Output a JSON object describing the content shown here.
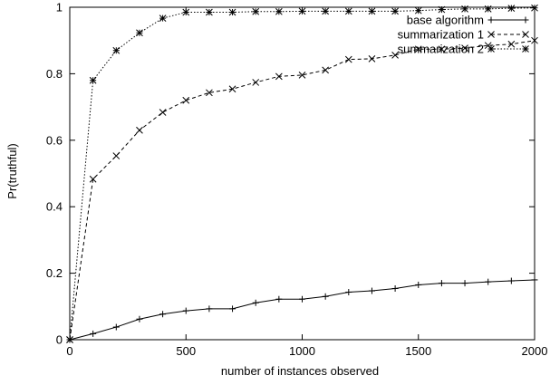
{
  "chart_data": {
    "type": "line",
    "title": "",
    "xlabel": "number of instances observed",
    "ylabel": "Pr(truthful)",
    "xlim": [
      0,
      2000
    ],
    "ylim": [
      0,
      1
    ],
    "x_ticks": [
      0,
      500,
      1000,
      1500,
      2000
    ],
    "x_tick_labels": [
      "0",
      "500",
      "1000",
      "1500",
      "2000"
    ],
    "y_ticks": [
      0,
      0.2,
      0.4,
      0.6,
      0.8,
      1
    ],
    "y_tick_labels": [
      "0",
      "0.2",
      "0.4",
      "0.6",
      "0.8",
      "1"
    ],
    "grid": false,
    "legend_position": "top-right",
    "x": [
      0,
      100,
      200,
      300,
      400,
      500,
      600,
      700,
      800,
      900,
      1000,
      1100,
      1200,
      1300,
      1400,
      1500,
      1600,
      1700,
      1800,
      1900,
      2000
    ],
    "series": [
      {
        "name": "base algorithm",
        "line_style": "solid",
        "marker": "plus",
        "values": [
          0,
          0.018,
          0.038,
          0.062,
          0.077,
          0.087,
          0.093,
          0.093,
          0.111,
          0.122,
          0.122,
          0.13,
          0.143,
          0.147,
          0.154,
          0.165,
          0.17,
          0.17,
          0.174,
          0.177,
          0.18
        ]
      },
      {
        "name": "summarization 1",
        "line_style": "dashed",
        "marker": "x",
        "values": [
          0,
          0.483,
          0.553,
          0.63,
          0.684,
          0.72,
          0.743,
          0.754,
          0.774,
          0.792,
          0.796,
          0.811,
          0.843,
          0.845,
          0.856,
          0.874,
          0.874,
          0.877,
          0.885,
          0.889,
          0.9
        ]
      },
      {
        "name": "summarization 2",
        "line_style": "dotted",
        "marker": "star",
        "values": [
          0,
          0.78,
          0.87,
          0.923,
          0.967,
          0.985,
          0.985,
          0.985,
          0.987,
          0.987,
          0.988,
          0.988,
          0.988,
          0.988,
          0.988,
          0.99,
          0.993,
          0.995,
          0.995,
          0.997,
          0.998
        ]
      }
    ]
  }
}
